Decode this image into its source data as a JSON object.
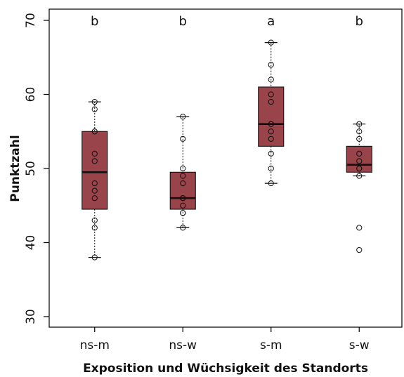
{
  "chart_data": {
    "type": "boxplot",
    "xlabel": "Exposition und Wüchsigkeit des Standorts",
    "ylabel": "Punktzahl",
    "ylim": [
      28.5,
      72
    ],
    "yticks": [
      30,
      40,
      50,
      60,
      70
    ],
    "ytick_labels": [
      "30",
      "40",
      "50",
      "60",
      "70"
    ],
    "box_color": "#99434a",
    "grid": false,
    "categories": [
      "ns-m",
      "ns-w",
      "s-m",
      "s-w"
    ],
    "significance_labels": [
      "b",
      "b",
      "a",
      "b"
    ],
    "boxes": [
      {
        "whisker_low": 38,
        "q1": 44.5,
        "median": 49.5,
        "q3": 55,
        "whisker_high": 59,
        "points": [
          59,
          58,
          55,
          55,
          52,
          51,
          48,
          47,
          46,
          43,
          42,
          38
        ]
      },
      {
        "whisker_low": 42,
        "q1": 44.5,
        "median": 46,
        "q3": 49.5,
        "whisker_high": 57,
        "points": [
          57,
          54,
          50,
          49,
          48,
          46,
          46,
          45,
          44,
          44,
          42
        ]
      },
      {
        "whisker_low": 48,
        "q1": 53,
        "median": 56,
        "q3": 61,
        "whisker_high": 67,
        "points": [
          67,
          64,
          62,
          60,
          59,
          56,
          56,
          55,
          54,
          52,
          50,
          48
        ]
      },
      {
        "whisker_low": 49,
        "q1": 49.5,
        "median": 50.5,
        "q3": 53,
        "whisker_high": 56,
        "points": [
          56,
          55,
          54,
          52,
          51,
          50,
          50,
          49,
          42,
          39
        ]
      }
    ]
  }
}
